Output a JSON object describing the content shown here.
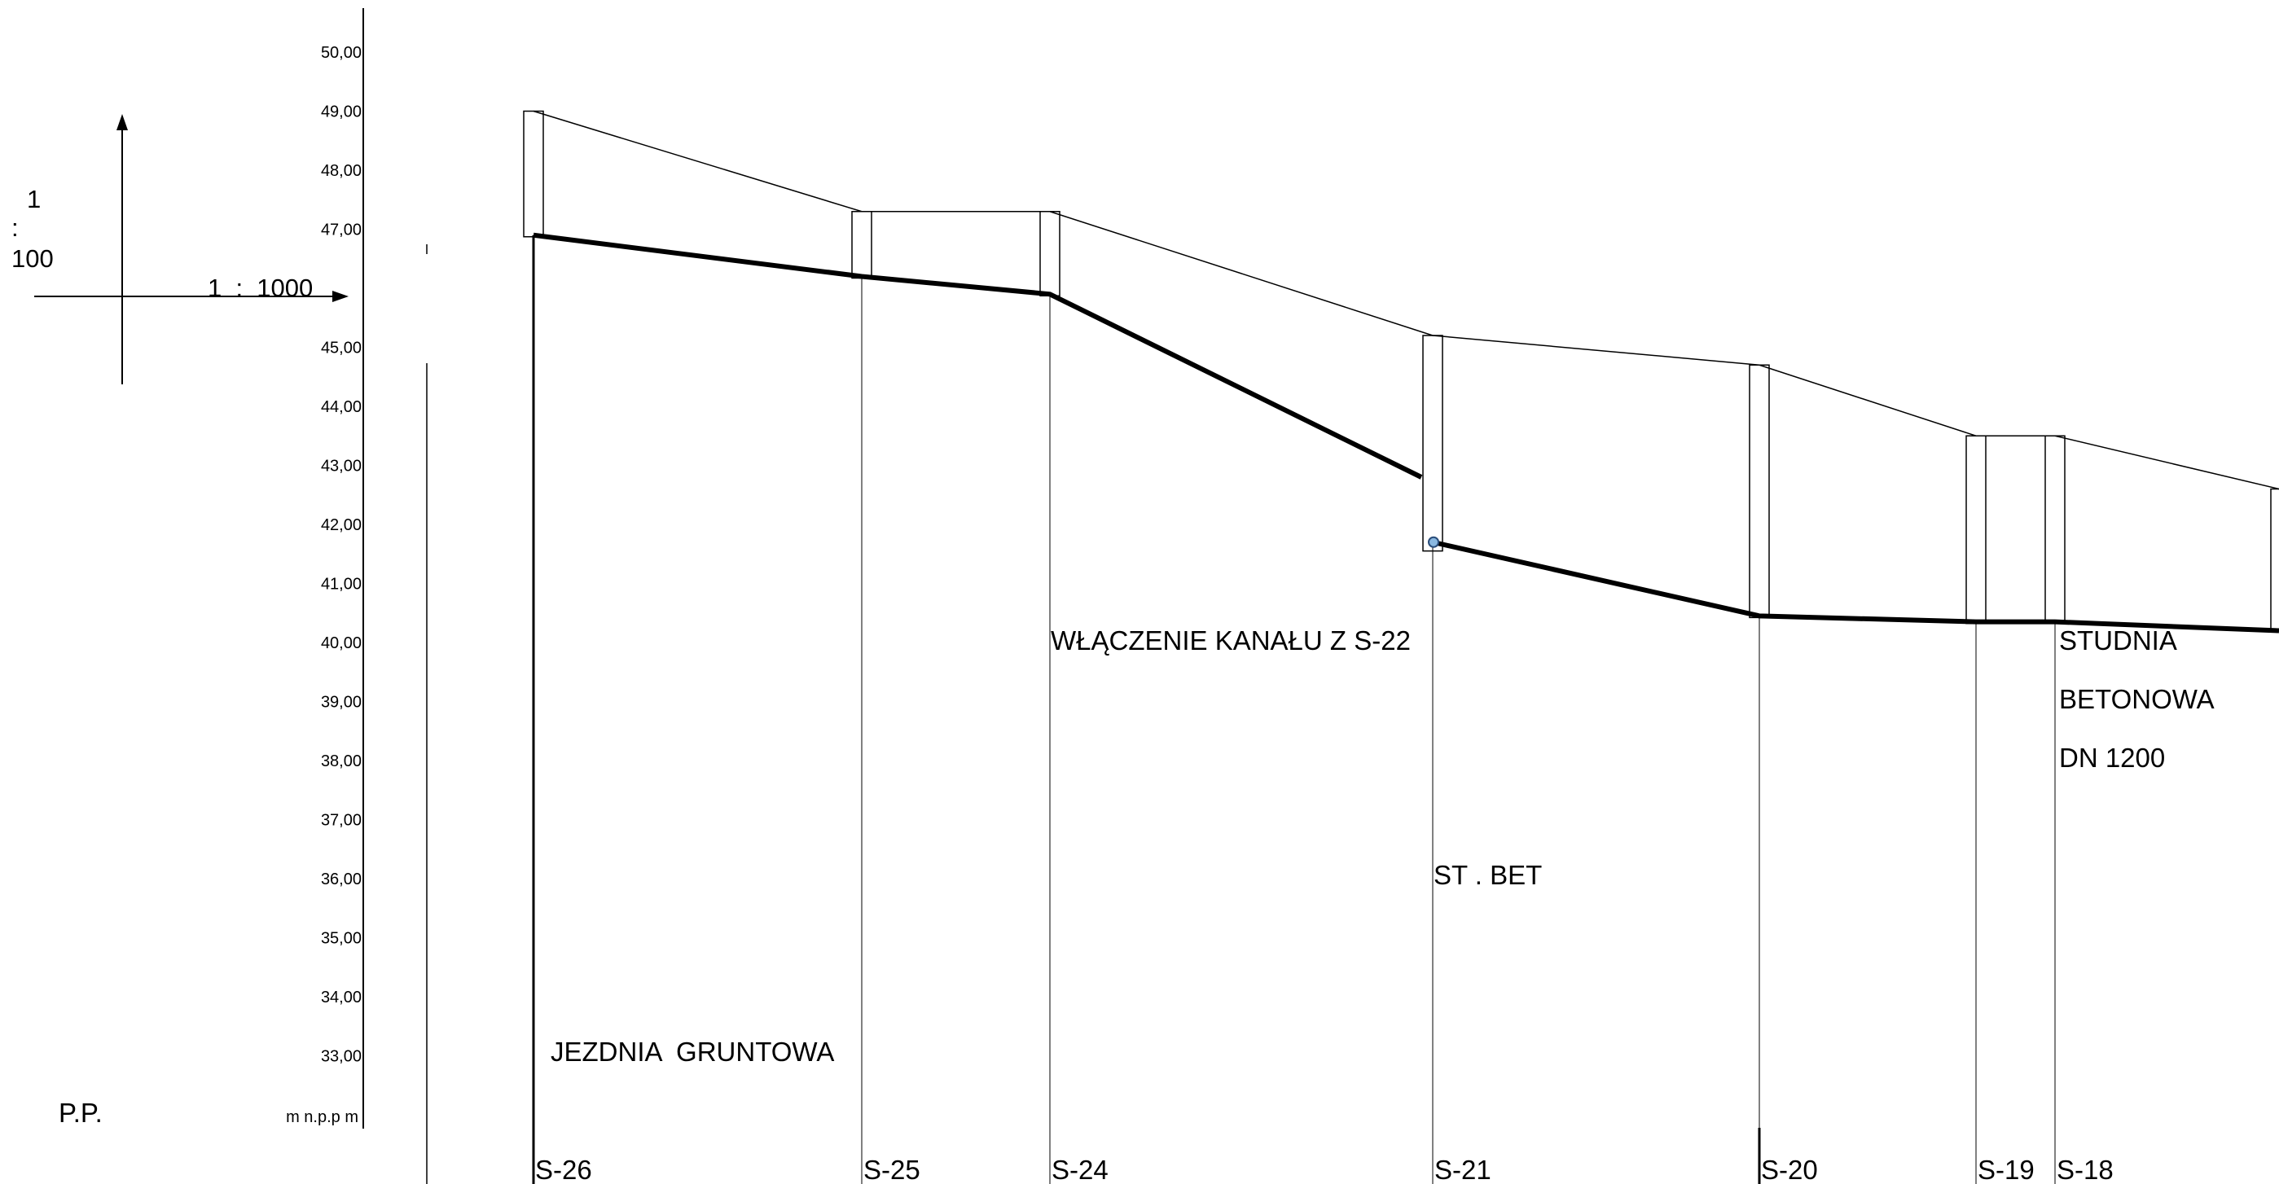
{
  "scale": {
    "vertical_num": "1",
    "vertical_sep": ":",
    "vertical_den": "100",
    "horizontal": "1  :  1000"
  },
  "axis": {
    "unit_label": "m  n.p.p m",
    "datum_label": "P.P.",
    "ticks": [
      "50,00",
      "49,00",
      "48,00",
      "47,00",
      "46,00",
      "45,00",
      "44,00",
      "43,00",
      "42,00",
      "41,00",
      "40,00",
      "39,00",
      "38,00",
      "37,00",
      "36,00",
      "35,00",
      "34,00",
      "33,00"
    ]
  },
  "profile": {
    "wells": [
      {
        "name": "S-26",
        "ground": 49.0,
        "invert": 46.9
      },
      {
        "name": "S-25",
        "ground": 47.3,
        "invert": 46.2
      },
      {
        "name": "S-24",
        "ground": 47.3,
        "invert": 45.9
      },
      {
        "name": "S-21",
        "ground": 45.2,
        "invert": 41.7
      },
      {
        "name": "S-20",
        "ground": 44.7,
        "invert": 40.45
      },
      {
        "name": "S-19",
        "ground": 43.5,
        "invert": 40.35
      },
      {
        "name": "S-18",
        "ground": 43.5,
        "invert": 40.35
      }
    ],
    "inflow_invert": 42.8
  },
  "notes": {
    "road": "JEZDNIA  GRUNTOWA",
    "inflow": "WŁĄCZENIE KANAŁU Z S-22",
    "well_type": "ST . BET",
    "studnia_1": "STUDNIA",
    "studnia_2": "BETONOWA",
    "studnia_3": "DN 1200"
  }
}
